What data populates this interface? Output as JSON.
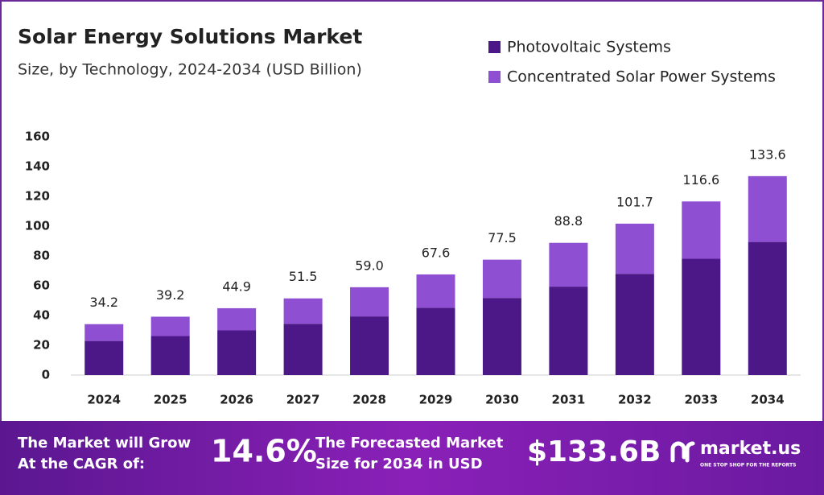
{
  "chart_data": {
    "type": "stacked_bar",
    "title": "Solar Energy Solutions Market",
    "subtitle": "Size, by Technology, 2024-2034 (USD Billion)",
    "categories": [
      "2024",
      "2025",
      "2026",
      "2027",
      "2028",
      "2029",
      "2030",
      "2031",
      "2032",
      "2033",
      "2034"
    ],
    "series": [
      {
        "name": "Photovoltaic Systems",
        "color": "#4c1787",
        "values": [
          22.9,
          26.2,
          30.0,
          34.4,
          39.4,
          45.2,
          51.8,
          59.4,
          68.0,
          78.1,
          89.4
        ]
      },
      {
        "name": "Concentrated Solar Power Systems",
        "color": "#8e4fd2",
        "values": [
          11.3,
          13.0,
          14.9,
          17.1,
          19.6,
          22.4,
          25.7,
          29.4,
          33.7,
          38.5,
          44.2
        ]
      }
    ],
    "totals": [
      34.2,
      39.2,
      44.9,
      51.5,
      {
        "value": 59,
        "label": "59.0"
      },
      67.6,
      77.5,
      88.8,
      101.7,
      116.6,
      133.6
    ],
    "ylim": [
      0,
      160
    ],
    "yticks": [
      0,
      20,
      40,
      60,
      80,
      100,
      120,
      140,
      160
    ],
    "grid": false,
    "legend": "top-right"
  },
  "footer": {
    "cagr_text": [
      "The Market will Grow",
      "At the CAGR of:"
    ],
    "cagr": "14.6%",
    "forecast_text": [
      "The Forecasted Market",
      "Size for 2034 in USD"
    ],
    "forecast": "$133.6B",
    "brand": "market.us",
    "tagline": "ONE STOP SHOP FOR THE REPORTS"
  }
}
